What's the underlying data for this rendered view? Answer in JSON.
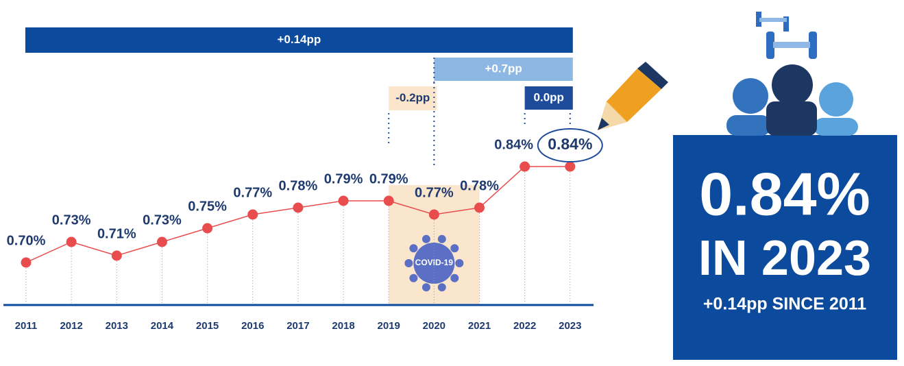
{
  "chart_data": {
    "type": "line",
    "categories": [
      "2011",
      "2012",
      "2013",
      "2014",
      "2015",
      "2016",
      "2017",
      "2018",
      "2019",
      "2020",
      "2021",
      "2022",
      "2023"
    ],
    "series": [
      {
        "color": "#e84c4c",
        "values": [
          0.7,
          0.73,
          0.71,
          0.73,
          0.75,
          0.77,
          0.78,
          0.79,
          0.79,
          0.77,
          0.78,
          0.84,
          0.84
        ],
        "value_labels": [
          "0.70%",
          "0.73%",
          "0.71%",
          "0.73%",
          "0.75%",
          "0.77%",
          "0.78%",
          "0.79%",
          "0.79%",
          "0.77%",
          "0.78%",
          "0.84%",
          "0.84%"
        ]
      }
    ],
    "annotations": [
      "+0.14pp",
      "+0.7pp",
      "-0.2pp",
      "0.0pp",
      "COVID-19"
    ]
  },
  "panel": {
    "value": "0.84%",
    "year": "IN 2023",
    "change": "+0.14pp SINCE 2011"
  }
}
